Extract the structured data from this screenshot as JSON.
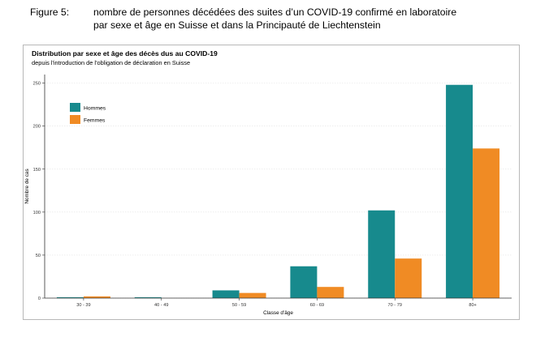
{
  "caption": {
    "number": "Figure 5:",
    "line1": "nombre de personnes décédées des suites d’un COVID-19 confirmé en laboratoire",
    "line2": "par sexe et âge en Suisse et dans la Principauté de Liechtenstein"
  },
  "chart_data": {
    "type": "bar",
    "title": "Distribution par sexe et âge des décès dus au COVID-19",
    "subtitle": "depuis l'introduction de l'obligation de déclaration en Suisse",
    "xlabel": "Classe d'âge",
    "ylabel": "Nombre de cas",
    "categories": [
      "30 - 39",
      "40 - 49",
      "50 - 59",
      "60 - 69",
      "70 - 79",
      "80+"
    ],
    "series": [
      {
        "name": "Hommes",
        "color": "#178a8d",
        "values": [
          1,
          1,
          9,
          37,
          102,
          248
        ]
      },
      {
        "name": "Femmes",
        "color": "#f08b24",
        "values": [
          2,
          0,
          6,
          13,
          46,
          174
        ]
      }
    ],
    "ylim": [
      0,
      260
    ],
    "yticks": [
      0,
      50,
      100,
      150,
      200,
      250
    ],
    "grid": true,
    "legend_position": "top-left"
  }
}
